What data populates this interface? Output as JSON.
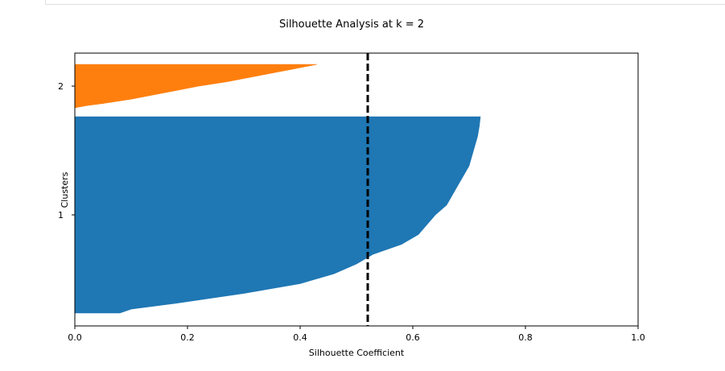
{
  "chart_data": {
    "type": "area",
    "title": "Silhouette Analysis at k = 2",
    "xlabel": "Silhouette Coefficient",
    "ylabel": "Clusters",
    "xlim": [
      0.0,
      1.0
    ],
    "x_ticks": [
      "0.0",
      "0.2",
      "0.4",
      "0.6",
      "0.8",
      "1.0"
    ],
    "y_tick_labels": [
      {
        "label": "1",
        "cluster": 0
      },
      {
        "label": "2",
        "cluster": 1
      }
    ],
    "average_silhouette": 0.52,
    "grid": false,
    "clusters": [
      {
        "label": "1",
        "color": "#1f77b4",
        "sorted_silhouette_profile": [
          {
            "fraction": 0.0,
            "silhouette": 0.08
          },
          {
            "fraction": 0.02,
            "silhouette": 0.1
          },
          {
            "fraction": 0.05,
            "silhouette": 0.18
          },
          {
            "fraction": 0.1,
            "silhouette": 0.3
          },
          {
            "fraction": 0.15,
            "silhouette": 0.4
          },
          {
            "fraction": 0.2,
            "silhouette": 0.46
          },
          {
            "fraction": 0.25,
            "silhouette": 0.5
          },
          {
            "fraction": 0.3,
            "silhouette": 0.53
          },
          {
            "fraction": 0.35,
            "silhouette": 0.58
          },
          {
            "fraction": 0.4,
            "silhouette": 0.61
          },
          {
            "fraction": 0.45,
            "silhouette": 0.625
          },
          {
            "fraction": 0.5,
            "silhouette": 0.64
          },
          {
            "fraction": 0.55,
            "silhouette": 0.66
          },
          {
            "fraction": 0.6,
            "silhouette": 0.67
          },
          {
            "fraction": 0.65,
            "silhouette": 0.68
          },
          {
            "fraction": 0.7,
            "silhouette": 0.69
          },
          {
            "fraction": 0.75,
            "silhouette": 0.7
          },
          {
            "fraction": 0.8,
            "silhouette": 0.705
          },
          {
            "fraction": 0.85,
            "silhouette": 0.71
          },
          {
            "fraction": 0.9,
            "silhouette": 0.715
          },
          {
            "fraction": 0.95,
            "silhouette": 0.718
          },
          {
            "fraction": 1.0,
            "silhouette": 0.72
          }
        ]
      },
      {
        "label": "2",
        "color": "#ff7f0e",
        "sorted_silhouette_profile": [
          {
            "fraction": 0.0,
            "silhouette": 0.0
          },
          {
            "fraction": 0.05,
            "silhouette": 0.02
          },
          {
            "fraction": 0.1,
            "silhouette": 0.05
          },
          {
            "fraction": 0.2,
            "silhouette": 0.1
          },
          {
            "fraction": 0.3,
            "silhouette": 0.14
          },
          {
            "fraction": 0.4,
            "silhouette": 0.18
          },
          {
            "fraction": 0.5,
            "silhouette": 0.22
          },
          {
            "fraction": 0.6,
            "silhouette": 0.27
          },
          {
            "fraction": 0.7,
            "silhouette": 0.31
          },
          {
            "fraction": 0.8,
            "silhouette": 0.35
          },
          {
            "fraction": 0.9,
            "silhouette": 0.39
          },
          {
            "fraction": 1.0,
            "silhouette": 0.43
          }
        ]
      }
    ]
  }
}
